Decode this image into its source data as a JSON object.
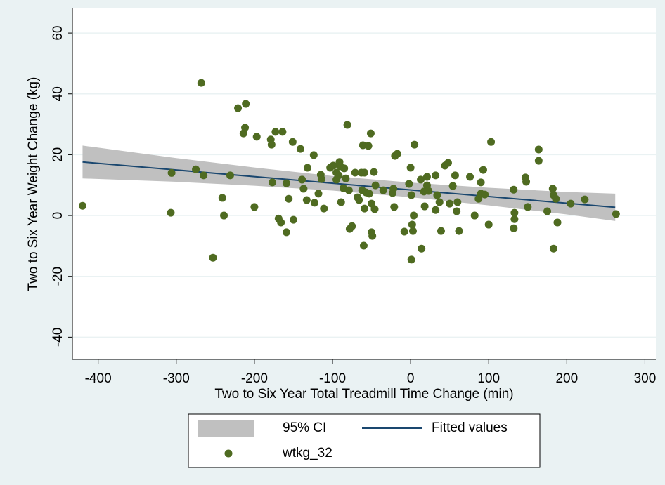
{
  "chart_data": {
    "type": "scatter",
    "x_label": "Two to Six Year Total Treadmill Time Change (min)",
    "y_label": "Two to Six Year Weight Change (kg)",
    "xlim": [
      -433,
      314
    ],
    "ylim": [
      -47.3,
      68.1
    ],
    "xticks": [
      -400,
      -300,
      -200,
      -100,
      0,
      100,
      200,
      300
    ],
    "yticks": [
      -40,
      -20,
      0,
      20,
      40,
      60
    ],
    "grid": true,
    "band": {
      "name": "95% CI",
      "color": "#c0c0c0",
      "x": [
        -420,
        -300,
        -200,
        -100,
        0,
        100,
        200,
        262
      ],
      "lower": [
        12.2,
        11.08,
        9.79,
        8.2,
        6.02,
        3.33,
        0.35,
        -1.8
      ],
      "upper": [
        23.0,
        18.88,
        15.79,
        13.0,
        10.82,
        9.13,
        7.75,
        7.2
      ]
    },
    "fit": {
      "name": "Fitted values",
      "color": "#1a476f",
      "x": [
        -420,
        262
      ],
      "values": [
        17.6,
        2.7
      ]
    },
    "series": [
      {
        "name": "wtkg_32",
        "color": "#4f6b21",
        "x": [
          -420,
          -307,
          -306,
          -275,
          -268,
          -265,
          -253,
          -241,
          -239,
          -231,
          -221,
          -214,
          -212,
          -211,
          -200,
          -197,
          -179,
          -178,
          -177,
          -173,
          -169,
          -166,
          -164,
          -159,
          -159,
          -156,
          -151,
          -150,
          -141,
          -139,
          -137,
          -133,
          -132,
          -124,
          -123,
          -118,
          -115,
          -114,
          -111,
          -103,
          -99,
          -95,
          -95,
          -92,
          -91,
          -90,
          -89,
          -86,
          -85,
          -83,
          -81,
          -79,
          -78,
          -75,
          -71,
          -68,
          -66,
          -63,
          -62,
          -61,
          -60,
          -59,
          -59,
          -57,
          -54,
          -53,
          -51,
          -50,
          -50,
          -49,
          -47,
          -46,
          -45,
          -35,
          -23,
          -22,
          -21,
          -20,
          -17,
          -8,
          -2,
          0,
          1,
          2,
          3,
          1,
          4,
          5,
          13,
          14,
          17,
          18,
          21,
          21,
          23,
          32,
          32,
          34,
          37,
          39,
          44,
          48,
          50,
          54,
          57,
          59,
          60,
          62,
          76,
          82,
          87,
          90,
          90,
          93,
          95,
          100,
          103,
          132,
          132,
          133,
          133,
          147,
          148,
          150,
          164,
          164,
          175,
          182,
          183,
          183,
          186,
          188,
          205,
          223,
          263
        ],
        "values": [
          3.2,
          0.9,
          14,
          15.2,
          43.6,
          13.2,
          -13.9,
          5.8,
          0,
          13.2,
          35.3,
          27,
          28.9,
          36.7,
          2.8,
          25.9,
          25,
          23.3,
          10.9,
          27.5,
          -1,
          -2.3,
          27.5,
          10.6,
          -5.5,
          5.5,
          24.2,
          -1.4,
          21.9,
          11.8,
          8.8,
          5.1,
          15.7,
          19.9,
          4.2,
          7.2,
          13.4,
          12,
          2.3,
          15.7,
          16.4,
          14.1,
          11.8,
          13.2,
          17.6,
          16.2,
          4.4,
          9,
          15.5,
          12.2,
          29.8,
          8.3,
          -4.4,
          -3.5,
          14.1,
          6,
          5.1,
          14.1,
          8.3,
          23.1,
          -9.9,
          2.3,
          14.1,
          7.6,
          22.9,
          7.2,
          27,
          3.9,
          -5.5,
          -6.7,
          14.3,
          2.1,
          9.9,
          8.3,
          7.4,
          8.8,
          2.8,
          19.6,
          20.3,
          -5.3,
          10.4,
          15.7,
          6.7,
          -3,
          -5.1,
          -14.5,
          0,
          23.3,
          11.8,
          -10.9,
          7.9,
          3,
          12.7,
          9.9,
          8.1,
          1.8,
          13.2,
          6.7,
          4.4,
          -5.1,
          16.4,
          17.3,
          3.9,
          9.7,
          13.2,
          1.4,
          4.4,
          -5.1,
          12.7,
          0,
          5.5,
          10.9,
          7.2,
          15,
          6.9,
          -3,
          24.2,
          8.5,
          -4.2,
          -1.2,
          0.9,
          12.5,
          11.1,
          2.8,
          21.7,
          18,
          1.4,
          8.8,
          6.7,
          -10.9,
          5.5,
          -2.3,
          3.9,
          5.3,
          0.5
        ]
      }
    ]
  }
}
